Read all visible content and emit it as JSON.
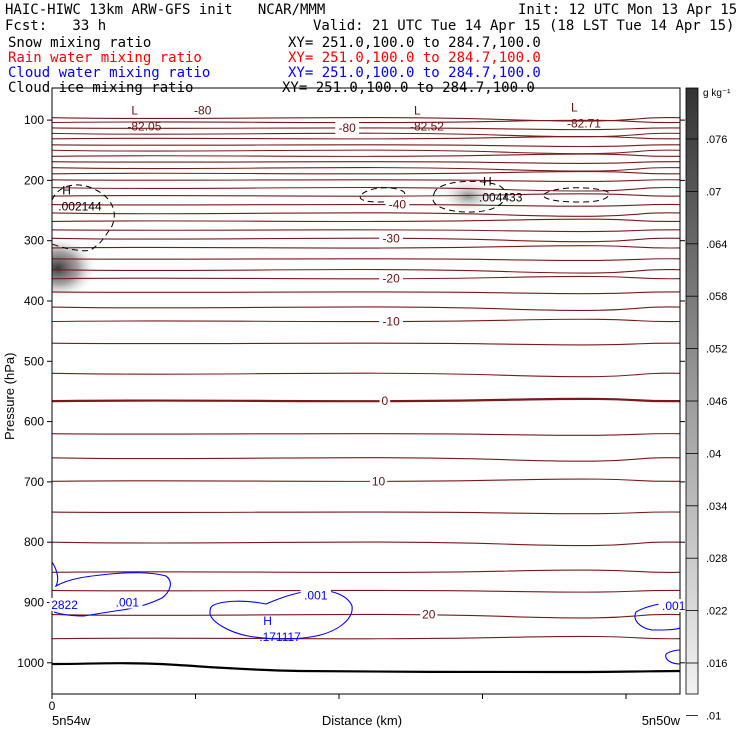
{
  "header": {
    "title_left": "HAIC-HIWC 13km ARW-GFS init   NCAR/MMM",
    "init": "Init: 12 UTC Mon 13 Apr 15",
    "fcst": "Fcst:   33 h",
    "valid": "Valid: 21 UTC Tue 14 Apr 15 (18 LST Tue 14 Apr 15)",
    "fields": [
      {
        "name": "Snow mixing ratio",
        "xy": "XY= 251.0,100.0 to 284.7,100.0",
        "color": "#000000"
      },
      {
        "name": "Rain water mixing ratio",
        "xy": "XY= 251.0,100.0 to 284.7,100.0",
        "color": "#ff0000"
      },
      {
        "name": "Cloud water mixing ratio",
        "xy": "XY= 251.0,100.0 to 284.7,100.0",
        "color": "#0000ff"
      },
      {
        "name": "Cloud ice mixing ratio",
        "xy": "XY= 251.0,100.0 to 284.7,100.0",
        "color": "#000000"
      }
    ]
  },
  "chart_data": {
    "type": "contour",
    "ylabel": "Pressure (hPa)",
    "xlabel": "Distance (km)",
    "y_ticks": [
      100,
      200,
      300,
      400,
      500,
      600,
      700,
      800,
      900,
      1000
    ],
    "ylim": [
      1050,
      50
    ],
    "x_tick_label": "0",
    "x_left_label": "5n54w",
    "x_right_label": "5n50w",
    "colorbar": {
      "unit": "g kg⁻¹",
      "labels": [
        ".076",
        ".07",
        ".064",
        ".058",
        ".052",
        ".046",
        ".04",
        ".034",
        ".028",
        ".022",
        ".016",
        ".01"
      ]
    },
    "temperature_labels": [
      {
        "text": "-80",
        "x": 0.24,
        "p": 84
      },
      {
        "text": "-80",
        "x": 0.47,
        "p": 113
      },
      {
        "text": "-40",
        "x": 0.55,
        "p": 240
      },
      {
        "text": "-30",
        "x": 0.54,
        "p": 296
      },
      {
        "text": "-20",
        "x": 0.54,
        "p": 363
      },
      {
        "text": "-10",
        "x": 0.54,
        "p": 434
      },
      {
        "text": "0",
        "x": 0.53,
        "p": 566
      },
      {
        "text": "10",
        "x": 0.52,
        "p": 699
      },
      {
        "text": "20",
        "x": 0.6,
        "p": 920
      }
    ],
    "extrema": [
      {
        "kind": "L",
        "value": "-82.05",
        "x": 0.12,
        "p": 97
      },
      {
        "kind": "L",
        "value": "-82.52",
        "x": 0.57,
        "p": 97
      },
      {
        "kind": "L",
        "value": "-82.71",
        "x": 0.82,
        "p": 92
      },
      {
        "kind": "H",
        "value": ".002144",
        "x": 0.01,
        "p": 230
      },
      {
        "kind": "H",
        "value": ".004433",
        "x": 0.68,
        "p": 215
      },
      {
        "kind": "H",
        "value": ".171117",
        "x": 0.33,
        "p": 944
      }
    ],
    "cloud_water_labels": [
      {
        "text": ".001",
        "x": 0.12,
        "p": 900
      },
      {
        "text": ".001",
        "x": 0.42,
        "p": 888
      },
      {
        "text": ".001",
        "x": 0.99,
        "p": 906
      },
      {
        "text": "2822",
        "x": 0.02,
        "p": 904
      }
    ]
  }
}
